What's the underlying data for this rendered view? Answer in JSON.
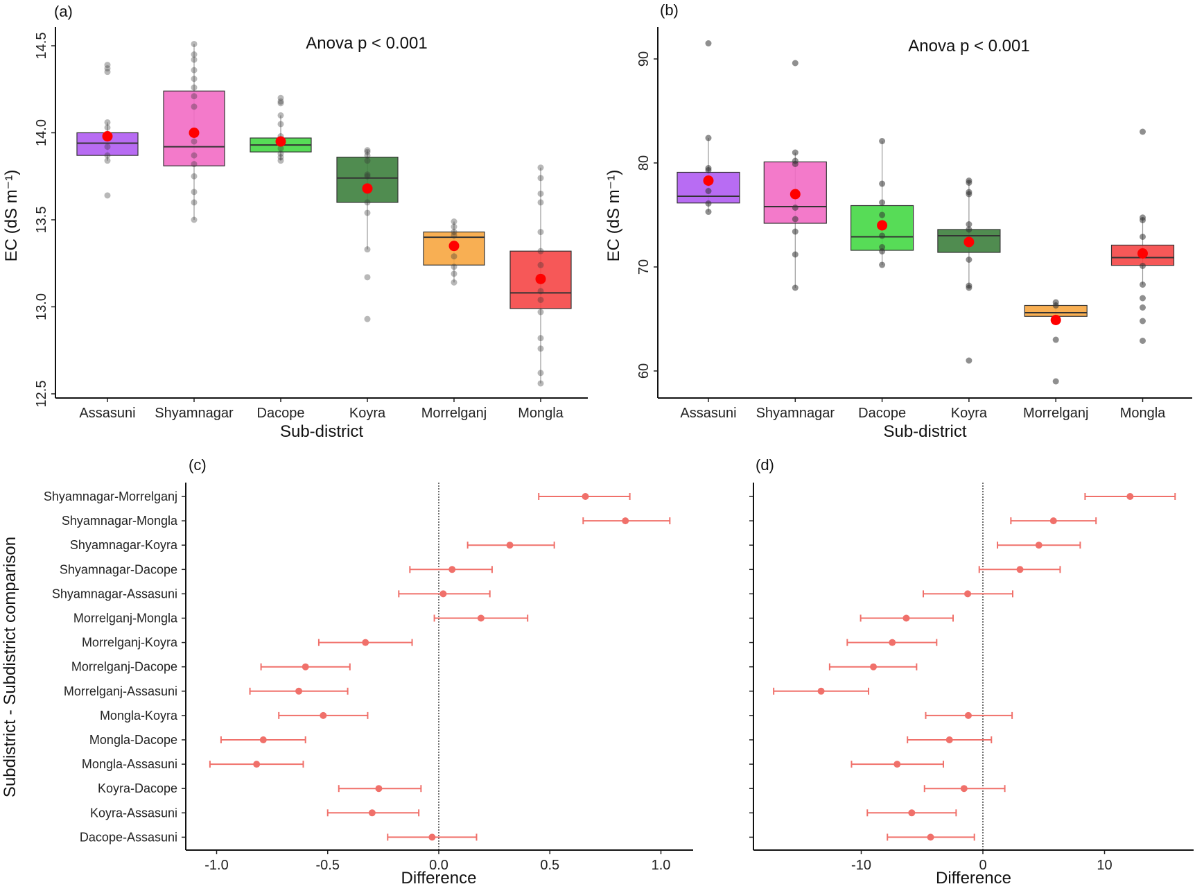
{
  "chart_data": [
    {
      "type": "box",
      "panel_label": "(a)",
      "annotation": "Anova p < 0.001",
      "xlabel": "Sub-district",
      "ylabel": "EC (dS m⁻¹)",
      "ylim": [
        12.47,
        14.61
      ],
      "yticks": [
        12.5,
        13.0,
        13.5,
        14.0,
        14.5
      ],
      "ytick_labels": [
        "12.5",
        "13.0",
        "13.5",
        "14.0",
        "14.5"
      ],
      "grid": false,
      "categories": [
        "Assasuni",
        "Shyamnagar",
        "Dacope",
        "Koyra",
        "Morrelganj",
        "Mongla"
      ],
      "colors": [
        "#b05cf2",
        "#f26bc4",
        "#45d845",
        "#3d7f3d",
        "#f7a640",
        "#f54646"
      ],
      "mean_color": "#ff0000",
      "boxes": [
        {
          "q1": 13.87,
          "median": 13.94,
          "q3": 14.0,
          "mean": 13.98,
          "whisker": [
            13.84,
            14.06
          ],
          "points": [
            14.39,
            14.37,
            14.35,
            14.06,
            14.03,
            13.92,
            13.87,
            13.84,
            13.64
          ]
        },
        {
          "q1": 13.81,
          "median": 13.92,
          "q3": 14.24,
          "mean": 14.0,
          "whisker": [
            13.5,
            14.51
          ],
          "points": [
            14.51,
            14.45,
            14.42,
            14.36,
            14.31,
            14.26,
            14.21,
            14.15,
            13.95,
            13.87,
            13.82,
            13.75,
            13.66,
            13.6,
            13.5
          ]
        },
        {
          "q1": 13.89,
          "median": 13.93,
          "q3": 13.97,
          "mean": 13.95,
          "whisker": [
            13.84,
            14.1
          ],
          "points": [
            14.2,
            14.18,
            14.17,
            14.1,
            14.05,
            13.98,
            13.91,
            13.88,
            13.86,
            13.84
          ]
        },
        {
          "q1": 13.6,
          "median": 13.74,
          "q3": 13.86,
          "mean": 13.68,
          "whisker": [
            13.33,
            13.9
          ],
          "points": [
            13.9,
            13.89,
            13.87,
            13.84,
            13.76,
            13.75,
            13.6,
            13.54,
            13.33,
            13.17,
            12.93
          ]
        },
        {
          "q1": 13.24,
          "median": 13.4,
          "q3": 13.43,
          "mean": 13.35,
          "whisker": [
            13.14,
            13.49
          ],
          "points": [
            13.49,
            13.46,
            13.43,
            13.41,
            13.35,
            13.29,
            13.23,
            13.19,
            13.14
          ]
        },
        {
          "q1": 12.99,
          "median": 13.08,
          "q3": 13.32,
          "mean": 13.16,
          "whisker": [
            12.56,
            13.8
          ],
          "points": [
            13.8,
            13.74,
            13.65,
            13.6,
            13.43,
            13.32,
            13.24,
            13.09,
            13.04,
            12.97,
            12.82,
            12.76,
            12.62,
            12.56
          ]
        }
      ]
    },
    {
      "type": "box",
      "panel_label": "(b)",
      "annotation": "Anova p < 0.001",
      "xlabel": "Sub-district",
      "ylabel": "EC (dS m⁻¹)",
      "ylim": [
        57.4,
        92.9
      ],
      "yticks": [
        60,
        70,
        80,
        90
      ],
      "ytick_labels": [
        "60",
        "70",
        "80",
        "90"
      ],
      "grid": false,
      "categories": [
        "Assasuni",
        "Shyamnagar",
        "Dacope",
        "Koyra",
        "Morrelganj",
        "Mongla"
      ],
      "colors": [
        "#b05cf2",
        "#f26bc4",
        "#45d845",
        "#3d7f3d",
        "#f7a640",
        "#f54646"
      ],
      "mean_color": "#ff0000",
      "boxes": [
        {
          "q1": 76.15,
          "median": 76.8,
          "q3": 79.1,
          "mean": 78.3,
          "whisker": [
            75.3,
            82.4
          ],
          "points": [
            91.5,
            82.4,
            79.5,
            79.3,
            77.3,
            76.1,
            75.3
          ]
        },
        {
          "q1": 74.2,
          "median": 75.8,
          "q3": 80.1,
          "mean": 77.0,
          "whisker": [
            68.0,
            81.0
          ],
          "points": [
            89.6,
            81.0,
            80.2,
            79.9,
            75.7,
            74.6,
            73.4,
            71.2,
            68.0
          ]
        },
        {
          "q1": 71.6,
          "median": 72.9,
          "q3": 75.9,
          "mean": 74.0,
          "whisker": [
            70.2,
            82.1
          ],
          "points": [
            82.1,
            78.0,
            76.2,
            75.0,
            73.0,
            71.9,
            71.5,
            70.2
          ]
        },
        {
          "q1": 71.4,
          "median": 73.0,
          "q3": 73.6,
          "mean": 72.4,
          "whisker": [
            68.0,
            78.3
          ],
          "points": [
            78.3,
            78.1,
            77.2,
            77.0,
            74.1,
            73.6,
            70.7,
            68.2,
            68.0,
            61.0
          ]
        },
        {
          "q1": 65.25,
          "median": 65.6,
          "q3": 66.3,
          "mean": 64.9,
          "whisker": [
            65.25,
            66.6
          ],
          "points": [
            66.6,
            66.3,
            63.0,
            59.0
          ]
        },
        {
          "q1": 70.15,
          "median": 70.9,
          "q3": 72.1,
          "mean": 71.3,
          "whisker": [
            68.3,
            74.75
          ],
          "points": [
            83.0,
            74.75,
            74.5,
            72.9,
            70.1,
            68.3,
            67.0,
            66.1,
            64.8,
            62.9
          ]
        }
      ]
    },
    {
      "type": "errorbar",
      "panel_label": "(c)",
      "xlabel": "Difference",
      "ylabel": "Subdistrict - Subdistrict comparison",
      "xlim": [
        -1.14,
        1.15
      ],
      "xticks": [
        -1.0,
        -0.5,
        0.0,
        0.5,
        1.0
      ],
      "xtick_labels": [
        "-1.0",
        "-0.5",
        "0.0",
        "0.5",
        "1.0"
      ],
      "reference_line": 0,
      "color": "#f0706a",
      "categories": [
        "Shyamnagar-Morrelganj",
        "Shyamnagar-Mongla",
        "Shyamnagar-Koyra",
        "Shyamnagar-Dacope",
        "Shyamnagar-Assasuni",
        "Morrelganj-Mongla",
        "Morrelganj-Koyra",
        "Morrelganj-Dacope",
        "Morrelganj-Assasuni",
        "Mongla-Koyra",
        "Mongla-Dacope",
        "Mongla-Assasuni",
        "Koyra-Dacope",
        "Koyra-Assasuni",
        "Dacope-Assasuni"
      ],
      "estimates": [
        0.66,
        0.84,
        0.32,
        0.06,
        0.02,
        0.19,
        -0.33,
        -0.6,
        -0.63,
        -0.52,
        -0.79,
        -0.82,
        -0.27,
        -0.3,
        -0.03
      ],
      "lower": [
        0.45,
        0.65,
        0.13,
        -0.13,
        -0.18,
        -0.02,
        -0.54,
        -0.8,
        -0.85,
        -0.72,
        -0.98,
        -1.03,
        -0.45,
        -0.5,
        -0.23
      ],
      "upper": [
        0.86,
        1.04,
        0.52,
        0.24,
        0.23,
        0.4,
        -0.12,
        -0.4,
        -0.41,
        -0.32,
        -0.6,
        -0.61,
        -0.08,
        -0.09,
        0.17
      ]
    },
    {
      "type": "errorbar",
      "panel_label": "(d)",
      "xlabel": "Difference",
      "xlim": [
        -18.9,
        17.3
      ],
      "xticks": [
        -10,
        0,
        10
      ],
      "xtick_labels": [
        "-10",
        "0",
        "10"
      ],
      "reference_line": 0,
      "color": "#f0706a",
      "estimates": [
        12.1,
        5.8,
        4.6,
        3.05,
        -1.25,
        -6.3,
        -7.45,
        -9.0,
        -13.3,
        -1.2,
        -2.75,
        -7.05,
        -1.55,
        -5.85,
        -4.3
      ],
      "lower": [
        8.4,
        2.3,
        1.2,
        -0.3,
        -4.9,
        -10.05,
        -11.15,
        -12.6,
        -17.2,
        -4.7,
        -6.2,
        -10.8,
        -4.8,
        -9.5,
        -7.85
      ],
      "upper": [
        15.8,
        9.3,
        8.0,
        6.35,
        2.45,
        -2.45,
        -3.8,
        -5.45,
        -9.4,
        2.4,
        0.7,
        -3.25,
        1.8,
        -2.2,
        -0.7
      ]
    }
  ]
}
